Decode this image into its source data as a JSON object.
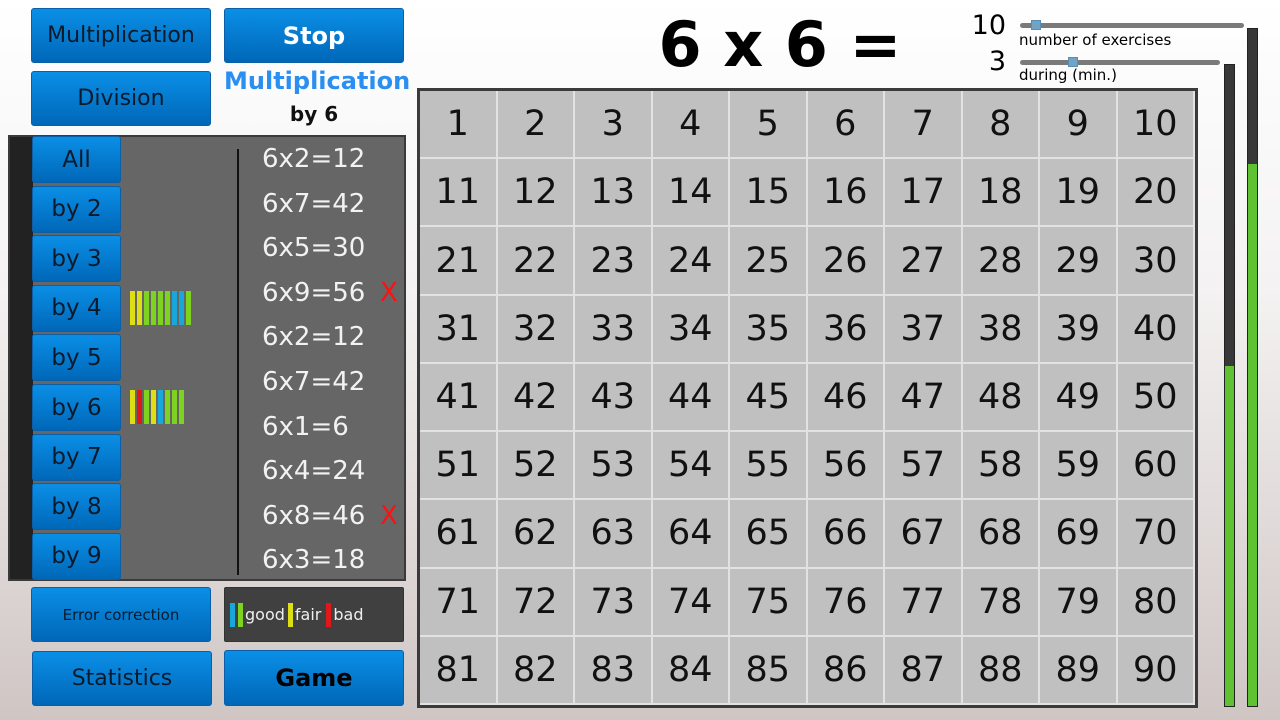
{
  "top_buttons": {
    "multiplication": "Multiplication",
    "stop": "Stop",
    "division": "Division"
  },
  "mode": {
    "title": "Multiplication",
    "subtitle": "by 6"
  },
  "question": "6 x 6 =",
  "settings": {
    "exercises_value": "10",
    "exercises_label": "number of exercises",
    "exercises_fraction": 0.05,
    "duration_value": "3",
    "duration_label": "during (min.)",
    "duration_fraction": 0.25
  },
  "progress": {
    "left_fraction": 0.53,
    "right_fraction": 0.8
  },
  "tables": [
    "All",
    "by 2",
    "by 3",
    "by 4",
    "by 5",
    "by 6",
    "by 7",
    "by 8",
    "by 9"
  ],
  "table_stats": [
    {
      "table": "by 4",
      "bars": [
        "yellow",
        "yellow",
        "green",
        "green",
        "green",
        "green",
        "blue",
        "blue",
        "green"
      ]
    },
    {
      "table": "by 6",
      "bars": [
        "yellow",
        "red",
        "green",
        "yellow",
        "blue",
        "green",
        "green",
        "green"
      ]
    }
  ],
  "colors": {
    "green": "#7ed321",
    "yellow": "#dede14",
    "blue": "#19a6d8",
    "red": "#e01818",
    "accent": "#2a8ff0"
  },
  "exercises": [
    {
      "text": "6x2=12",
      "wrong": false
    },
    {
      "text": "6x7=42",
      "wrong": false
    },
    {
      "text": "6x5=30",
      "wrong": false
    },
    {
      "text": "6x9=56",
      "wrong": true
    },
    {
      "text": "6x2=12",
      "wrong": false
    },
    {
      "text": "6x7=42",
      "wrong": false
    },
    {
      "text": "6x1=6",
      "wrong": false
    },
    {
      "text": "6x4=24",
      "wrong": false
    },
    {
      "text": "6x8=46",
      "wrong": true
    },
    {
      "text": "6x3=18",
      "wrong": false
    }
  ],
  "wrong_mark": "X",
  "legend": {
    "good": "good",
    "fair": "fair",
    "bad": "bad"
  },
  "bottom_buttons": {
    "error_correction": "Error correction",
    "statistics": "Statistics",
    "game": "Game"
  },
  "grid_numbers": [
    1,
    2,
    3,
    4,
    5,
    6,
    7,
    8,
    9,
    10,
    11,
    12,
    13,
    14,
    15,
    16,
    17,
    18,
    19,
    20,
    21,
    22,
    23,
    24,
    25,
    26,
    27,
    28,
    29,
    30,
    31,
    32,
    33,
    34,
    35,
    36,
    37,
    38,
    39,
    40,
    41,
    42,
    43,
    44,
    45,
    46,
    47,
    48,
    49,
    50,
    51,
    52,
    53,
    54,
    55,
    56,
    57,
    58,
    59,
    60,
    61,
    62,
    63,
    64,
    65,
    66,
    67,
    68,
    69,
    70,
    71,
    72,
    73,
    74,
    75,
    76,
    77,
    78,
    79,
    80,
    81,
    82,
    83,
    84,
    85,
    86,
    87,
    88,
    89,
    90
  ]
}
